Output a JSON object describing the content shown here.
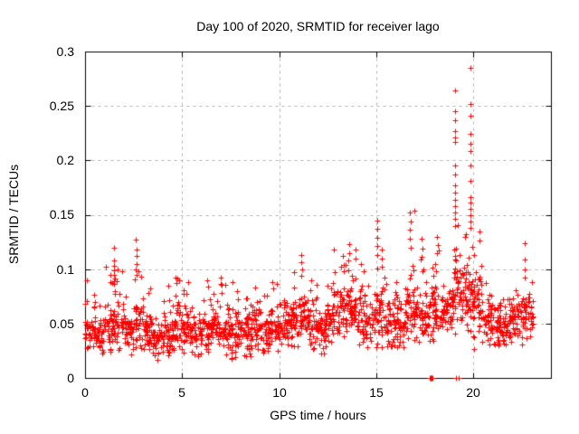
{
  "chart_data": {
    "type": "scatter",
    "title": "Day 100 of 2020, SRMTID for receiver lago",
    "xlabel": "GPS time / hours",
    "ylabel": "SRMTID / TECUs",
    "xlim": [
      0,
      24
    ],
    "ylim": [
      0,
      0.3
    ],
    "xticks": [
      0,
      5,
      10,
      15,
      20
    ],
    "xtick_labels": [
      "0",
      "5",
      "10",
      "15",
      "20"
    ],
    "yticks": [
      0,
      0.05,
      0.1,
      0.15,
      0.2,
      0.25,
      0.3
    ],
    "ytick_labels": [
      "0",
      "0.05",
      "0.1",
      "0.15",
      "0.2",
      "0.25",
      "0.3"
    ],
    "grid": true,
    "grid_color": "#b0b0b0",
    "axis_color": "#000000",
    "marker": "plus",
    "marker_color": "#ff0000",
    "marker_size_px": 7,
    "density_bins": [
      [
        0.0,
        0.5,
        38,
        0.022,
        0.042,
        0.09
      ],
      [
        0.5,
        1.0,
        40,
        0.018,
        0.038,
        0.075
      ],
      [
        1.0,
        1.5,
        40,
        0.02,
        0.045,
        0.1
      ],
      [
        1.5,
        2.0,
        40,
        0.022,
        0.048,
        0.105
      ],
      [
        2.0,
        2.5,
        40,
        0.02,
        0.04,
        0.08
      ],
      [
        2.5,
        3.0,
        40,
        0.022,
        0.048,
        0.1
      ],
      [
        3.0,
        3.5,
        40,
        0.02,
        0.042,
        0.09
      ],
      [
        3.5,
        4.0,
        38,
        0.015,
        0.035,
        0.065
      ],
      [
        4.0,
        4.5,
        40,
        0.02,
        0.04,
        0.08
      ],
      [
        4.5,
        5.0,
        40,
        0.022,
        0.048,
        0.095
      ],
      [
        5.0,
        5.5,
        40,
        0.02,
        0.045,
        0.088
      ],
      [
        5.5,
        6.0,
        40,
        0.02,
        0.04,
        0.072
      ],
      [
        6.0,
        6.5,
        40,
        0.02,
        0.044,
        0.082
      ],
      [
        6.5,
        7.0,
        40,
        0.022,
        0.045,
        0.088
      ],
      [
        7.0,
        7.5,
        40,
        0.02,
        0.044,
        0.09
      ],
      [
        7.5,
        8.0,
        40,
        0.015,
        0.038,
        0.08
      ],
      [
        8.0,
        8.5,
        40,
        0.018,
        0.04,
        0.075
      ],
      [
        8.5,
        9.0,
        40,
        0.02,
        0.044,
        0.085
      ],
      [
        9.0,
        9.5,
        40,
        0.02,
        0.04,
        0.08
      ],
      [
        9.5,
        10.0,
        40,
        0.024,
        0.045,
        0.09
      ],
      [
        10.0,
        10.5,
        40,
        0.025,
        0.05,
        0.085
      ],
      [
        10.5,
        11.0,
        40,
        0.028,
        0.05,
        0.095
      ],
      [
        11.0,
        11.5,
        40,
        0.028,
        0.052,
        0.1
      ],
      [
        11.5,
        12.0,
        40,
        0.025,
        0.048,
        0.09
      ],
      [
        12.0,
        12.5,
        38,
        0.02,
        0.042,
        0.075
      ],
      [
        12.5,
        13.0,
        40,
        0.03,
        0.055,
        0.1
      ],
      [
        13.0,
        13.5,
        42,
        0.035,
        0.06,
        0.108
      ],
      [
        13.5,
        14.0,
        44,
        0.04,
        0.065,
        0.115
      ],
      [
        14.0,
        14.5,
        40,
        0.03,
        0.058,
        0.105
      ],
      [
        14.5,
        15.0,
        36,
        0.025,
        0.048,
        0.09
      ],
      [
        15.0,
        15.5,
        40,
        0.028,
        0.055,
        0.11
      ],
      [
        15.5,
        16.0,
        40,
        0.025,
        0.05,
        0.095
      ],
      [
        16.0,
        16.5,
        40,
        0.025,
        0.05,
        0.09
      ],
      [
        16.5,
        17.0,
        42,
        0.03,
        0.058,
        0.12
      ],
      [
        17.0,
        17.5,
        40,
        0.03,
        0.055,
        0.11
      ],
      [
        17.5,
        18.0,
        40,
        0.03,
        0.055,
        0.105
      ],
      [
        18.0,
        18.5,
        40,
        0.035,
        0.06,
        0.12
      ],
      [
        18.5,
        19.0,
        38,
        0.04,
        0.065,
        0.11
      ],
      [
        19.0,
        19.5,
        46,
        0.04,
        0.08,
        0.15
      ],
      [
        19.5,
        20.0,
        46,
        0.04,
        0.08,
        0.15
      ],
      [
        20.0,
        20.5,
        44,
        0.025,
        0.065,
        0.12
      ],
      [
        20.5,
        21.0,
        40,
        0.028,
        0.052,
        0.088
      ],
      [
        21.0,
        21.5,
        40,
        0.028,
        0.05,
        0.08
      ],
      [
        21.5,
        22.0,
        40,
        0.028,
        0.05,
        0.085
      ],
      [
        22.0,
        22.5,
        40,
        0.03,
        0.054,
        0.09
      ],
      [
        22.5,
        23.0,
        40,
        0.03,
        0.054,
        0.095
      ],
      [
        23.0,
        23.1,
        8,
        0.035,
        0.055,
        0.085
      ]
    ],
    "spike_points": [
      [
        0.08,
        0.09
      ],
      [
        1.05,
        0.102
      ],
      [
        1.3,
        0.095
      ],
      [
        1.31,
        0.088
      ],
      [
        1.5,
        0.12
      ],
      [
        1.5,
        0.108
      ],
      [
        1.49,
        0.103
      ],
      [
        1.51,
        0.099
      ],
      [
        1.5,
        0.095
      ],
      [
        1.52,
        0.091
      ],
      [
        1.7,
        0.1
      ],
      [
        2.62,
        0.127
      ],
      [
        2.64,
        0.118
      ],
      [
        2.65,
        0.112
      ],
      [
        2.66,
        0.105
      ],
      [
        2.63,
        0.1
      ],
      [
        2.67,
        0.095
      ],
      [
        2.9,
        0.093
      ],
      [
        4.3,
        0.085
      ],
      [
        4.65,
        0.092
      ],
      [
        4.7,
        0.087
      ],
      [
        4.85,
        0.09
      ],
      [
        5.3,
        0.088
      ],
      [
        6.3,
        0.09
      ],
      [
        6.35,
        0.084
      ],
      [
        7.0,
        0.092
      ],
      [
        7.05,
        0.086
      ],
      [
        7.6,
        0.088
      ],
      [
        8.75,
        0.083
      ],
      [
        9.65,
        0.088
      ],
      [
        9.7,
        0.082
      ],
      [
        10.75,
        0.097
      ],
      [
        11.15,
        0.113
      ],
      [
        11.15,
        0.106
      ],
      [
        11.17,
        0.1
      ],
      [
        11.13,
        0.094
      ],
      [
        11.6,
        0.081
      ],
      [
        12.8,
        0.118
      ],
      [
        13.3,
        0.112
      ],
      [
        13.32,
        0.104
      ],
      [
        13.6,
        0.123
      ],
      [
        13.62,
        0.115
      ],
      [
        13.58,
        0.108
      ],
      [
        13.95,
        0.118
      ],
      [
        13.93,
        0.11
      ],
      [
        14.2,
        0.105
      ],
      [
        15.05,
        0.145
      ],
      [
        15.05,
        0.137
      ],
      [
        15.07,
        0.129
      ],
      [
        15.03,
        0.121
      ],
      [
        15.05,
        0.113
      ],
      [
        15.3,
        0.118
      ],
      [
        15.28,
        0.11
      ],
      [
        16.75,
        0.152
      ],
      [
        16.76,
        0.144
      ],
      [
        16.74,
        0.136
      ],
      [
        16.75,
        0.128
      ],
      [
        16.77,
        0.12
      ],
      [
        16.95,
        0.154
      ],
      [
        17.35,
        0.128
      ],
      [
        17.36,
        0.119
      ],
      [
        17.34,
        0.111
      ],
      [
        18.15,
        0.13
      ],
      [
        18.16,
        0.122
      ],
      [
        18.14,
        0.115
      ],
      [
        19.05,
        0.264
      ],
      [
        19.05,
        0.245
      ],
      [
        19.06,
        0.237
      ],
      [
        19.04,
        0.227
      ],
      [
        19.05,
        0.221
      ],
      [
        19.06,
        0.217
      ],
      [
        19.04,
        0.195
      ],
      [
        19.05,
        0.187
      ],
      [
        19.05,
        0.177
      ],
      [
        19.06,
        0.17
      ],
      [
        19.04,
        0.164
      ],
      [
        19.05,
        0.158
      ],
      [
        19.05,
        0.152
      ],
      [
        19.06,
        0.146
      ],
      [
        19.04,
        0.14
      ],
      [
        19.55,
        0.13
      ],
      [
        19.85,
        0.285
      ],
      [
        19.85,
        0.252
      ],
      [
        19.86,
        0.241
      ],
      [
        19.84,
        0.224
      ],
      [
        19.85,
        0.215
      ],
      [
        19.86,
        0.209
      ],
      [
        19.84,
        0.195
      ],
      [
        19.85,
        0.181
      ],
      [
        19.85,
        0.166
      ],
      [
        19.86,
        0.161
      ],
      [
        19.84,
        0.155
      ],
      [
        19.85,
        0.15
      ],
      [
        19.86,
        0.144
      ],
      [
        19.84,
        0.138
      ],
      [
        20.3,
        0.135
      ],
      [
        20.32,
        0.126
      ],
      [
        22.65,
        0.124
      ],
      [
        22.65,
        0.109
      ],
      [
        22.63,
        0.1
      ],
      [
        22.67,
        0.092
      ],
      [
        23.0,
        0.088
      ]
    ],
    "zero_points": [
      [
        17.74,
        0
      ],
      [
        17.78,
        0
      ],
      [
        17.82,
        0
      ],
      [
        17.86,
        0
      ],
      [
        17.9,
        0
      ],
      [
        19.1,
        0
      ],
      [
        19.24,
        0
      ]
    ],
    "max_point": [
      19.85,
      0.285
    ]
  }
}
